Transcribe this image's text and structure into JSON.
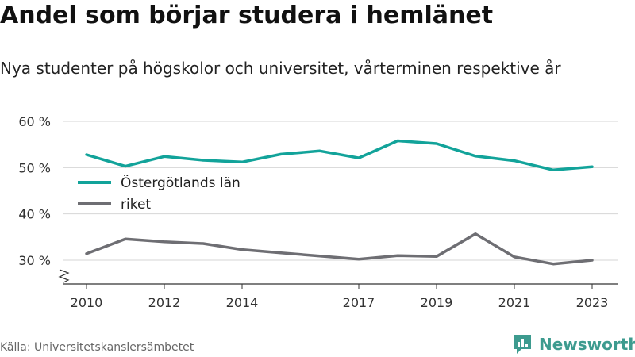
{
  "title": "Andel som börjar studera i hemlänet",
  "subtitle": "Nya studenter på högskolor och universitet, vårterminen respektive år",
  "source": "Källa: Universitetskanslersämbetet",
  "brand": {
    "name": "Newsworthy",
    "icon": "newsworthy-logo-icon",
    "color": "#3d9b8f"
  },
  "chart_data": {
    "type": "line",
    "x": [
      2010,
      2011,
      2012,
      2013,
      2014,
      2015,
      2016,
      2017,
      2018,
      2019,
      2020,
      2021,
      2022,
      2023
    ],
    "xticks": [
      2010,
      2012,
      2014,
      2017,
      2019,
      2021,
      2023
    ],
    "ylim": [
      25,
      62
    ],
    "yticks": [
      30,
      40,
      50,
      60
    ],
    "ytick_labels": [
      "30 %",
      "40 %",
      "50 %",
      "60 %"
    ],
    "axis_break": true,
    "grid": true,
    "legend_position": "left",
    "series": [
      {
        "name": "Östergötlands län",
        "color": "#12a39a",
        "values": [
          52.8,
          50.3,
          52.4,
          51.6,
          51.2,
          52.9,
          53.6,
          52.1,
          55.8,
          55.2,
          52.5,
          51.5,
          49.5,
          50.2
        ]
      },
      {
        "name": "riket",
        "color": "#6e6e73",
        "values": [
          31.4,
          34.6,
          34.0,
          33.6,
          32.3,
          31.6,
          30.9,
          30.2,
          31.0,
          30.8,
          35.7,
          30.7,
          29.2,
          30.0
        ]
      }
    ]
  }
}
